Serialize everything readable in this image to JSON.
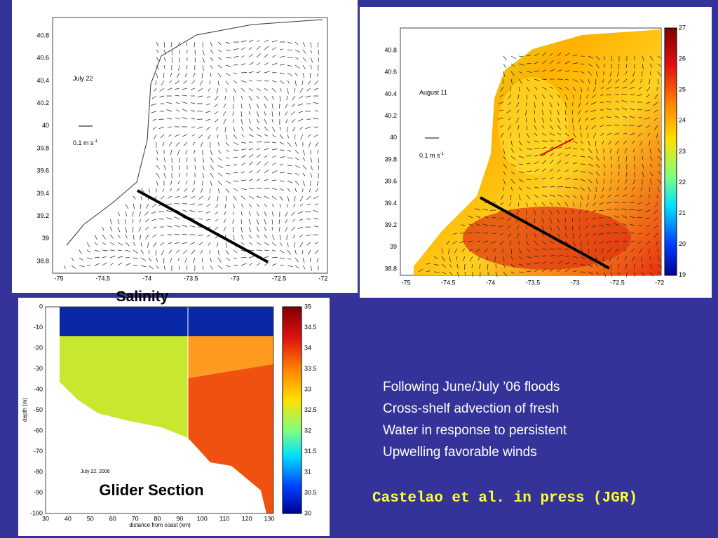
{
  "map_july": {
    "date": "July 22",
    "scale": {
      "text": "0.1 m s",
      "sup": "-1"
    },
    "xticks": [
      "-75",
      "-74.5",
      "-74",
      "-73.5",
      "-73",
      "-72.5",
      "-72"
    ],
    "yticks": [
      "40.8",
      "40.6",
      "40.4",
      "40.2",
      "40",
      "39.8",
      "39.6",
      "39.4",
      "39.2",
      "39",
      "38.8"
    ]
  },
  "map_august": {
    "date": "August 11",
    "scale": {
      "text": "0.1 m s",
      "sup": "-1"
    },
    "xticks": [
      "-75",
      "-74.5",
      "-74",
      "-73.5",
      "-73",
      "-72.5",
      "-72"
    ],
    "yticks": [
      "40.8",
      "40.6",
      "40.4",
      "40.2",
      "40",
      "39.8",
      "39.6",
      "39.4",
      "39.2",
      "39",
      "38.8"
    ],
    "colorbar": [
      "27",
      "26",
      "25",
      "24",
      "23",
      "22",
      "21",
      "20",
      "19"
    ]
  },
  "labels": {
    "salinity": "Salinity",
    "glider": "Glider Section"
  },
  "section": {
    "date": "July 22, 2006",
    "ylabel": "depth (m)",
    "xlabel": "distance from coast (km)",
    "yticks": [
      "0",
      "-10",
      "-20",
      "-30",
      "-40",
      "-50",
      "-60",
      "-70",
      "-80",
      "-90",
      "-100"
    ],
    "xticks": [
      "30",
      "40",
      "50",
      "60",
      "70",
      "80",
      "90",
      "100",
      "110",
      "120",
      "130"
    ],
    "colorbar": [
      "35",
      "34.5",
      "34",
      "33.5",
      "33",
      "32.5",
      "32",
      "31.5",
      "31",
      "30.5",
      "30"
    ]
  },
  "body": {
    "lines": [
      "Following June/July ’06 floods",
      "Cross-shelf advection of fresh",
      "Water in response to persistent",
      "Upwelling favorable winds"
    ],
    "citation": "Castelao et al. in press (JGR)"
  }
}
